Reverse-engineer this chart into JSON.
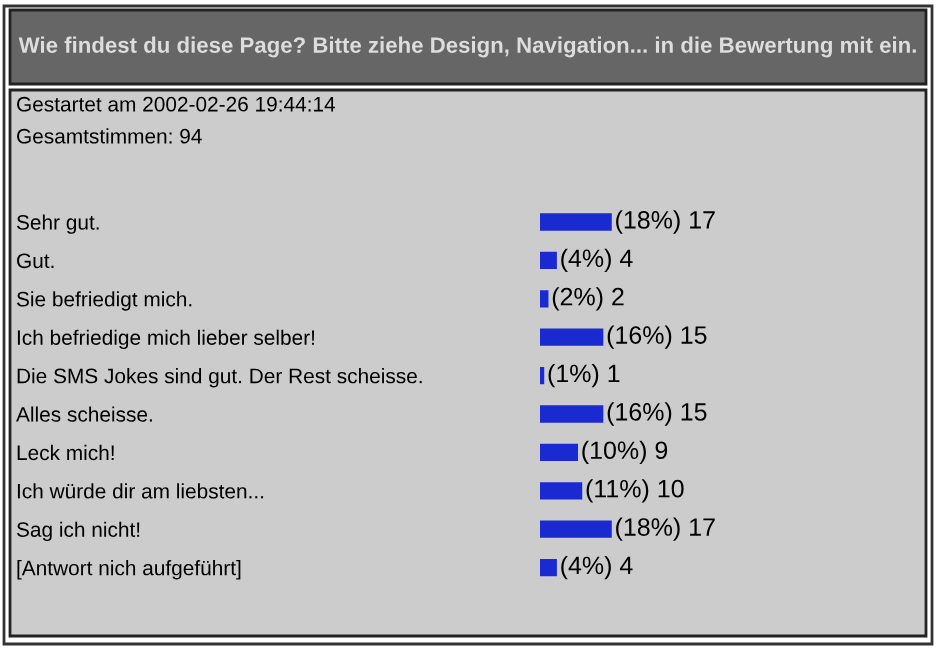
{
  "chart_data": {
    "type": "bar",
    "orientation": "horizontal",
    "title": "Wie findest du diese Page? Bitte ziehe Design, Navigation... in die Bewertung mit ein.",
    "subtitle": "Gestartet am 2002-02-26 19:44:14",
    "annotations": [
      "Gesamtstimmen: 94"
    ],
    "categories": [
      "Sehr gut.",
      "Gut.",
      "Sie befriedigt mich.",
      "Ich befriedige mich lieber selber!",
      "Die SMS Jokes sind gut. Der Rest scheisse.",
      "Alles scheisse.",
      "Leck mich!",
      "Ich würde dir am liebsten...",
      "Sag ich nicht!",
      "[Antwort nich aufgeführt]"
    ],
    "values": [
      17,
      4,
      2,
      15,
      1,
      15,
      9,
      10,
      17,
      4
    ],
    "value_labels": [
      "(18%) 17",
      "(4%) 4",
      "(2%) 2",
      "(16%) 15",
      "(1%) 1",
      "(16%) 15",
      "(10%) 9",
      "(11%) 10",
      "(18%) 17",
      "(4%) 4"
    ],
    "color": "#1a2ad0",
    "xlim": [
      0,
      90
    ],
    "tick_labels": "y",
    "grid": false,
    "legend": false
  }
}
